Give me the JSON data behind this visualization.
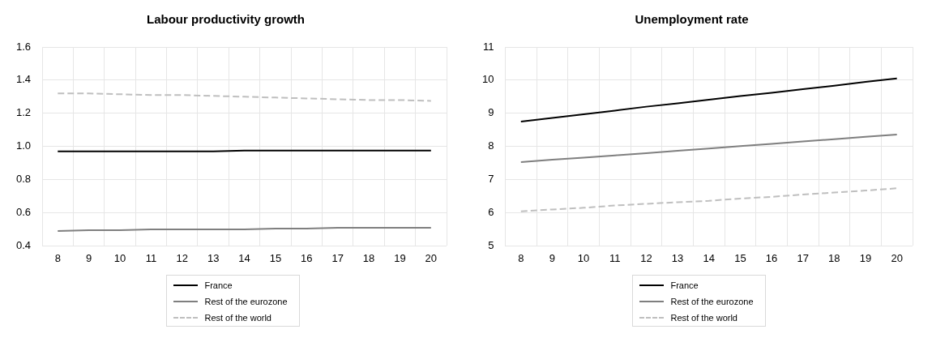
{
  "chart_data": [
    {
      "type": "line",
      "title": "Labour productivity growth",
      "categories": [
        "8",
        "9",
        "10",
        "11",
        "12",
        "13",
        "14",
        "15",
        "16",
        "17",
        "18",
        "19",
        "20"
      ],
      "series": [
        {
          "name": "France",
          "color": "#000000",
          "line_style": "solid",
          "values": [
            0.97,
            0.97,
            0.97,
            0.97,
            0.97,
            0.97,
            0.975,
            0.975,
            0.975,
            0.975,
            0.975,
            0.975,
            0.975
          ]
        },
        {
          "name": "Rest of the eurozone",
          "color": "#7f7f7f",
          "line_style": "solid",
          "values": [
            0.49,
            0.495,
            0.495,
            0.5,
            0.5,
            0.5,
            0.5,
            0.505,
            0.505,
            0.51,
            0.51,
            0.51,
            0.51
          ]
        },
        {
          "name": "Rest of the world",
          "color": "#bfbfbf",
          "line_style": "dashed",
          "values": [
            1.32,
            1.32,
            1.315,
            1.31,
            1.31,
            1.305,
            1.3,
            1.295,
            1.29,
            1.285,
            1.28,
            1.28,
            1.275
          ]
        }
      ],
      "ylim": [
        0.4,
        1.6
      ],
      "yticks": [
        {
          "value": 0.4,
          "label": "0.4"
        },
        {
          "value": 0.6,
          "label": "0.6"
        },
        {
          "value": 0.8,
          "label": "0.8"
        },
        {
          "value": 1.0,
          "label": "1.0"
        },
        {
          "value": 1.2,
          "label": "1.2"
        },
        {
          "value": 1.4,
          "label": "1.4"
        },
        {
          "value": 1.6,
          "label": "1.6"
        }
      ],
      "grid": true,
      "legend": "bottom",
      "marker": "none"
    },
    {
      "type": "line",
      "title": "Unemployment rate",
      "categories": [
        "8",
        "9",
        "10",
        "11",
        "12",
        "13",
        "14",
        "15",
        "16",
        "17",
        "18",
        "19",
        "20"
      ],
      "series": [
        {
          "name": "France",
          "color": "#000000",
          "line_style": "solid",
          "values": [
            8.75,
            8.86,
            8.97,
            9.08,
            9.2,
            9.3,
            9.41,
            9.52,
            9.62,
            9.73,
            9.83,
            9.95,
            10.05
          ]
        },
        {
          "name": "Rest of the eurozone",
          "color": "#7f7f7f",
          "line_style": "solid",
          "values": [
            7.53,
            7.6,
            7.66,
            7.73,
            7.8,
            7.87,
            7.94,
            8.01,
            8.08,
            8.15,
            8.22,
            8.29,
            8.36
          ]
        },
        {
          "name": "Rest of the world",
          "color": "#bfbfbf",
          "line_style": "dashed",
          "values": [
            6.04,
            6.1,
            6.15,
            6.22,
            6.27,
            6.32,
            6.36,
            6.43,
            6.48,
            6.55,
            6.61,
            6.67,
            6.74
          ]
        }
      ],
      "ylim": [
        5,
        11
      ],
      "yticks": [
        5,
        6,
        7,
        8,
        9,
        10,
        11
      ],
      "grid": true,
      "legend": "bottom",
      "marker": "none"
    }
  ]
}
